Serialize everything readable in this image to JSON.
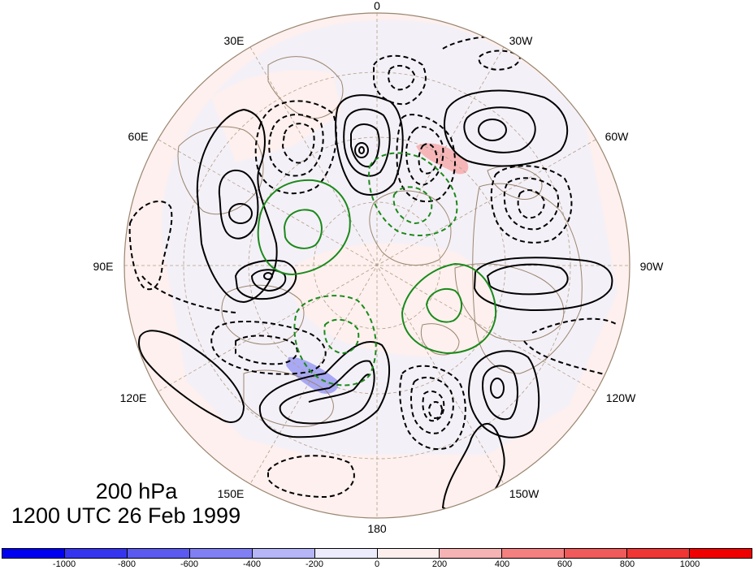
{
  "map": {
    "projection": "polar-stereographic",
    "level_label": "200 hPa",
    "time_label": "1200 UTC 26 Feb 1999",
    "longitude_labels": [
      "0",
      "30W",
      "60W",
      "90W",
      "120W",
      "150W",
      "180",
      "150E",
      "120E",
      "90E",
      "60E",
      "30E"
    ],
    "fill_colors": {
      "positive_weak": "#fdf0ee",
      "negative_weak": "#eef0fd",
      "positive_strong": "#f6b6b8",
      "negative_strong": "#a8a8f4",
      "contour_positive": "#000000",
      "contour_negative": "#000000",
      "contour_green": "#1a8a1a",
      "coast": "#9a8670",
      "grid": "#b0a08a"
    }
  },
  "colorbar": {
    "tick_labels": [
      "-1000",
      "-800",
      "-600",
      "-400",
      "-200",
      "0",
      "200",
      "400",
      "600",
      "800",
      "1000"
    ],
    "segment_colors": [
      "#0000f0",
      "#3535f0",
      "#5a5af0",
      "#8080f4",
      "#b5b5f8",
      "#ececfd",
      "#fdeeee",
      "#f6b3b3",
      "#f48080",
      "#f05a5a",
      "#f03535",
      "#f00000"
    ]
  }
}
